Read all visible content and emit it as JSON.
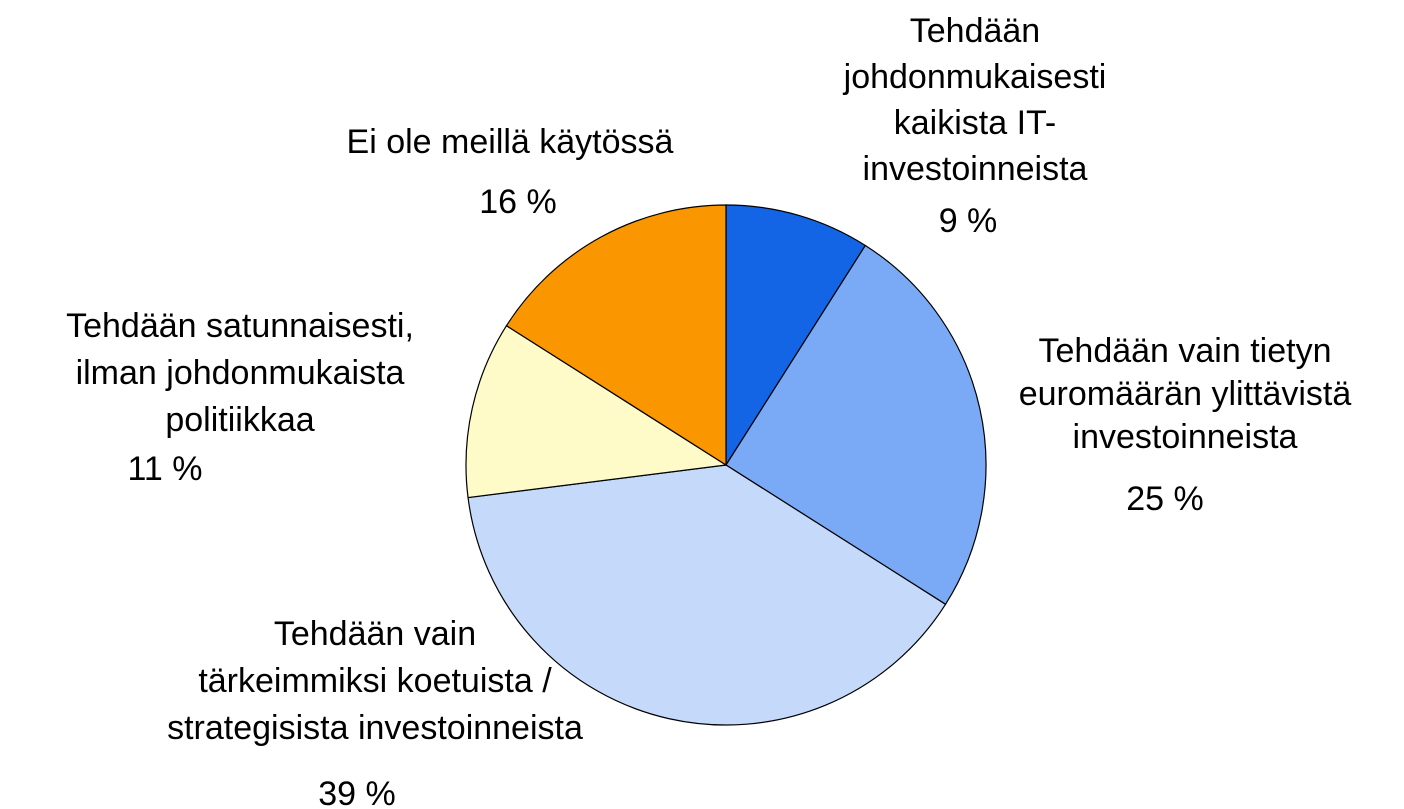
{
  "chart_data": {
    "type": "pie",
    "categories": [
      "Tehdään\njohdonmukaisesti\nkaikista IT-\ninvestoinneista",
      "Tehdään vain tietyn\neuromäärän ylittävistä\ninvestoinneista",
      "Tehdään vain\ntärkeimmiksi koetuista /\nstrategisista investoinneista",
      "Tehdään satunnaisesti,\nilman johdonmukaista\npolitiikkaa",
      "Ei ole meillä käytössä"
    ],
    "values": [
      9,
      25,
      39,
      11,
      16
    ],
    "value_labels": [
      "9 %",
      "25 %",
      "39 %",
      "11 %",
      "16 %"
    ],
    "colors": [
      "#1464e6",
      "#7aaaf5",
      "#c5dafa",
      "#fffbc8",
      "#fa9600"
    ]
  }
}
